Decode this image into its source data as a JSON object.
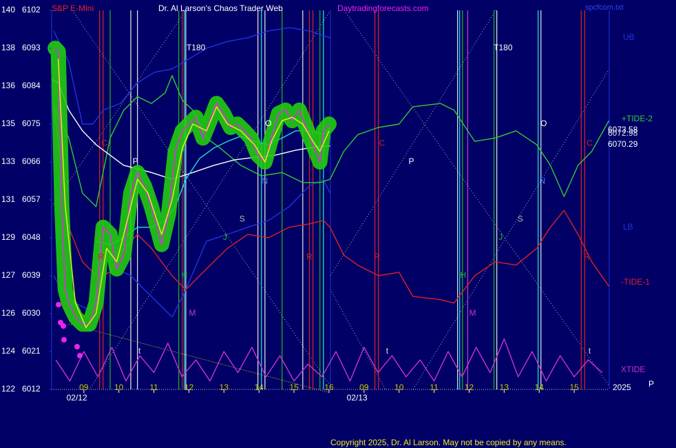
{
  "chart_data": {
    "type": "line",
    "title": "Dr. Al Larson's Chaos Trader Web",
    "instrument": "S&P E-Mini",
    "site": "Daytradingforecasts.com",
    "file": "spcfcom.txt",
    "copyright": "Copyright 2025, Dr. Al Larson. May not be copied by any means.",
    "year": "2025",
    "corner_label": "P",
    "dates": [
      {
        "label": "02/12",
        "x": 0.8
      },
      {
        "label": "02/13",
        "x": 8.8
      }
    ],
    "xlim": [
      0.08,
      16
    ],
    "xticks": [
      {
        "value": 1,
        "label": "09"
      },
      {
        "value": 2,
        "label": "10"
      },
      {
        "value": 3,
        "label": "11"
      },
      {
        "value": 4,
        "label": "12"
      },
      {
        "value": 5,
        "label": "13"
      },
      {
        "value": 6,
        "label": "14"
      },
      {
        "value": 7,
        "label": "15"
      },
      {
        "value": 8,
        "label": "16"
      },
      {
        "value": 9,
        "label": "09"
      },
      {
        "value": 10,
        "label": "10"
      },
      {
        "value": 11,
        "label": "11"
      },
      {
        "value": 12,
        "label": "12"
      },
      {
        "value": 13,
        "label": "13"
      },
      {
        "value": 14,
        "label": "14"
      },
      {
        "value": 15,
        "label": "15"
      }
    ],
    "ylim": [
      6012,
      6102
    ],
    "yticks": [
      6012,
      6021,
      6030,
      6039,
      6048,
      6057,
      6066,
      6075,
      6084,
      6093,
      6102
    ],
    "y2lim": [
      122,
      140
    ],
    "y2ticks": [
      {
        "value": 122,
        "label": "122"
      },
      {
        "value": 123.8,
        "label": "124"
      },
      {
        "value": 125.6,
        "label": "126"
      },
      {
        "value": 127.4,
        "label": "127"
      },
      {
        "value": 129.2,
        "label": "129"
      },
      {
        "value": 131,
        "label": "131"
      },
      {
        "value": 132.8,
        "label": "133"
      },
      {
        "value": 134.6,
        "label": "135"
      },
      {
        "value": 136.4,
        "label": "136"
      },
      {
        "value": 138.2,
        "label": "138"
      },
      {
        "value": 140,
        "label": "140"
      }
    ],
    "last_values": [
      6073.58,
      6072.98,
      6070.29
    ],
    "series": [
      {
        "name": "UB",
        "color": "#2233dd",
        "x": [
          0.14,
          0.57,
          0.96,
          1.26,
          1.55,
          2.04,
          2.53,
          3.02,
          3.52,
          4.01,
          4.5,
          5.1,
          5.68,
          6.27,
          6.86,
          7.44,
          8.03
        ],
        "values": [
          6097.1,
          6089.7,
          6075.0,
          6075.0,
          6078.3,
          6079.9,
          6084.8,
          6087.3,
          6088.1,
          6090.5,
          6093.0,
          6094.6,
          6095.5,
          6097.1,
          6097.9,
          6097.1,
          6095.5
        ]
      },
      {
        "name": "LB",
        "color": "#2233dd",
        "x": [
          0.14,
          0.47,
          0.76,
          1.16,
          1.55,
          1.94,
          2.34,
          2.73,
          3.12,
          3.52,
          3.91,
          4.5,
          5.1,
          5.68,
          6.27,
          6.86,
          7.44,
          7.84,
          8.03
        ],
        "values": [
          6039.0,
          6034.1,
          6032.5,
          6030.8,
          6039.0,
          6040.6,
          6039.0,
          6035.7,
          6032.5,
          6029.2,
          6035.7,
          6047.2,
          6048.8,
          6050.5,
          6052.1,
          6055.4,
          6060.3,
          6061.9,
          6058.6
        ]
      },
      {
        "name": "+TIDE-2",
        "color": "#33cc33",
        "x": [
          0.18,
          0.57,
          0.96,
          1.35,
          1.75,
          2.14,
          2.53,
          2.93,
          3.32,
          3.52,
          3.81,
          4.11,
          4.5,
          4.89,
          5.48,
          6.07,
          6.66,
          7.25,
          7.74,
          8.03,
          8.42,
          8.82,
          9.41,
          10.0,
          10.39,
          11.18,
          11.57,
          12.16,
          12.75,
          13.34,
          13.93,
          14.32,
          14.71,
          15.11,
          15.5,
          15.99
        ],
        "values": [
          6078.3,
          6071.7,
          6058.6,
          6055.4,
          6071.7,
          6078.3,
          6081.5,
          6079.9,
          6082.4,
          6086.5,
          6080.7,
          6078.3,
          6071.7,
          6069.3,
          6065.2,
          6062.7,
          6063.5,
          6061.1,
          6061.1,
          6061.9,
          6068.5,
          6072.5,
          6074.2,
          6075.0,
          6079.1,
          6079.9,
          6078.3,
          6070.9,
          6071.7,
          6073.4,
          6070.1,
          6065.2,
          6057.8,
          6065.2,
          6068.5,
          6075.8
        ]
      },
      {
        "name": "-TIDE-1",
        "color": "#dd2222",
        "x": [
          0.14,
          0.37,
          0.57,
          0.96,
          1.35,
          1.75,
          2.14,
          2.53,
          2.93,
          3.52,
          3.91,
          4.5,
          5.1,
          5.68,
          6.27,
          6.86,
          7.44,
          7.84,
          8.03,
          8.42,
          8.82,
          9.41,
          10.0,
          10.39,
          11.18,
          11.57,
          12.16,
          12.75,
          13.34,
          13.93,
          14.32,
          14.71,
          15.11,
          15.5,
          15.99
        ],
        "values": [
          6079.9,
          6063.5,
          6050.5,
          6042.3,
          6039.0,
          6039.8,
          6045.5,
          6048.8,
          6045.5,
          6039.0,
          6035.7,
          6040.6,
          6045.5,
          6048.8,
          6048.0,
          6050.5,
          6051.3,
          6052.1,
          6050.5,
          6043.9,
          6041.5,
          6039.0,
          6039.8,
          6034.1,
          6033.3,
          6032.5,
          6039.0,
          6042.3,
          6041.5,
          6045.5,
          6050.5,
          6054.5,
          6048.8,
          6042.3,
          6036.5
        ]
      },
      {
        "name": "XTIDE",
        "color": "#cc33cc",
        "x": [
          0.2,
          0.6,
          1.0,
          1.4,
          1.8,
          2.2,
          2.6,
          3.0,
          3.4,
          3.8,
          4.2,
          4.6,
          5.0,
          5.4,
          5.8,
          6.2,
          6.6,
          7.0,
          7.4,
          7.8,
          8.2,
          8.6,
          9.0,
          9.4,
          9.8,
          10.2,
          10.6,
          11.0,
          11.4,
          11.8,
          12.2,
          12.6,
          13.0,
          13.4,
          13.8,
          14.2,
          14.6,
          15.0,
          15.4,
          15.8
        ],
        "values": [
          6019,
          6014,
          6021,
          6015,
          6022,
          6014,
          6020,
          6016,
          6023,
          6015,
          6019,
          6014,
          6021,
          6016,
          6022,
          6015,
          6020,
          6014,
          6018,
          6015,
          6021,
          6014,
          6022,
          6016,
          6020,
          6015,
          6019,
          6014,
          6021,
          6015,
          6022,
          6016,
          6024,
          6015,
          6021,
          6014,
          6020,
          6015,
          6019,
          6016
        ]
      },
      {
        "color": "#ffffff",
        "x": [
          0.08,
          0.27,
          0.57,
          0.96,
          1.35,
          1.75,
          2.14,
          2.53,
          2.93,
          3.52,
          4.11,
          4.71,
          5.3,
          5.87,
          6.46,
          7.05,
          7.64,
          8.03
        ],
        "values": [
          6085.6,
          6084.8,
          6078.3,
          6073.4,
          6070.1,
          6067.6,
          6065.2,
          6064.4,
          6063.5,
          6061.9,
          6063.5,
          6065.2,
          6066.5,
          6067.1,
          6067.6,
          6068.8,
          6069.6,
          6069.8
        ]
      },
      {
        "color": "#22dddd",
        "x": [
          1.35,
          1.75,
          2.14,
          2.53,
          2.93,
          3.32,
          3.61,
          3.91,
          4.3,
          4.71,
          5.1,
          5.48,
          5.87,
          6.27,
          6.66,
          7.05,
          7.44,
          7.84,
          8.03
        ],
        "values": [
          6047.2,
          6046.4,
          6048.0,
          6050.5,
          6050.5,
          6052.1,
          6055.4,
          6061.9,
          6066.8,
          6069.3,
          6070.9,
          6072.1,
          6070.9,
          6070.1,
          6071.7,
          6073.4,
          6073.4,
          6072.5,
          6074.2
        ]
      },
      {
        "color": "#ee22ee",
        "halo": "#22cc11",
        "x": [
          0.18,
          0.27,
          0.37,
          0.47,
          0.57,
          0.76,
          0.96,
          1.16,
          1.35,
          1.55,
          1.75,
          1.94,
          2.14,
          2.34,
          2.53,
          2.73,
          2.93,
          3.22,
          3.42,
          3.61,
          3.81,
          4.01,
          4.2,
          4.4,
          4.6,
          4.79,
          4.99,
          5.19,
          5.38,
          5.58,
          5.77,
          5.97,
          6.17,
          6.36,
          6.56,
          6.76,
          6.95,
          7.15,
          7.35,
          7.54,
          7.74,
          7.84,
          8.0
        ],
        "values": [
          6093.0,
          6092.2,
          6055.4,
          6035.7,
          6032.5,
          6029.2,
          6027.5,
          6027.5,
          6032.5,
          6050.5,
          6048.8,
          6040.6,
          6043.9,
          6058.6,
          6063.5,
          6060.3,
          6055.4,
          6046.4,
          6053.7,
          6068.5,
          6073.4,
          6075.0,
          6076.6,
          6071.7,
          6075.8,
          6079.9,
          6077.5,
          6074.2,
          6075.0,
          6073.4,
          6071.7,
          6067.6,
          6066.0,
          6071.7,
          6077.5,
          6078.3,
          6075.8,
          6078.3,
          6074.2,
          6070.1,
          6066.0,
          6073.4,
          6075.0
        ]
      },
      {
        "color": "#eeee22",
        "x": [
          0.27,
          0.47,
          0.76,
          1.06,
          1.35,
          1.65,
          1.94,
          2.24,
          2.53,
          2.83,
          3.22,
          3.52,
          3.81,
          4.11,
          4.5,
          4.79,
          5.1,
          5.48,
          5.87,
          6.17,
          6.36,
          6.66,
          6.95,
          7.25,
          7.54,
          7.74,
          8.0
        ],
        "values": [
          6090.5,
          6055.4,
          6032.5,
          6026.7,
          6030.0,
          6045.5,
          6042.3,
          6052.1,
          6061.9,
          6058.6,
          6048.8,
          6057.0,
          6069.3,
          6075.0,
          6073.4,
          6079.1,
          6075.0,
          6073.4,
          6070.1,
          6066.0,
          6070.9,
          6075.8,
          6076.6,
          6075.0,
          6070.9,
          6068.5,
          6073.4
        ]
      }
    ],
    "vlines": [
      {
        "x": 1.45,
        "color": "#cc2222"
      },
      {
        "x": 1.55,
        "color": "#cc2222"
      },
      {
        "x": 1.75,
        "color": "#22aa22"
      },
      {
        "x": 2.34,
        "color": "#dddddd"
      },
      {
        "x": 2.53,
        "color": "#dddddd"
      },
      {
        "x": 3.71,
        "color": "#22aa22"
      },
      {
        "x": 3.81,
        "color": "#cc2222"
      },
      {
        "x": 3.87,
        "color": "#22dddd"
      },
      {
        "x": 3.91,
        "color": "#dddddd"
      },
      {
        "x": 5.97,
        "color": "#dddddd"
      },
      {
        "x": 6.07,
        "color": "#22dddd"
      },
      {
        "x": 6.17,
        "color": "#dddddd"
      },
      {
        "x": 6.66,
        "color": "#22aa22"
      },
      {
        "x": 7.25,
        "color": "#dddddd"
      },
      {
        "x": 7.44,
        "color": "#cc2222"
      },
      {
        "x": 7.54,
        "color": "#cc2222"
      },
      {
        "x": 7.74,
        "color": "#22aa22"
      },
      {
        "x": 7.84,
        "color": "#22dddd"
      },
      {
        "x": 9.31,
        "color": "#cc2222"
      },
      {
        "x": 9.41,
        "color": "#cc2222"
      },
      {
        "x": 11.67,
        "color": "#dddddd"
      },
      {
        "x": 11.73,
        "color": "#22dddd"
      },
      {
        "x": 11.81,
        "color": "#22aa22"
      },
      {
        "x": 11.96,
        "color": "#cc33cc"
      },
      {
        "x": 12.71,
        "color": "#22aa22"
      },
      {
        "x": 12.79,
        "color": "#dddddd"
      },
      {
        "x": 13.97,
        "color": "#22dddd"
      },
      {
        "x": 14.05,
        "color": "#dddddd"
      },
      {
        "x": 15.2,
        "color": "#cc2222"
      },
      {
        "x": 15.3,
        "color": "#cc2222"
      }
    ],
    "markers": [
      {
        "label": "C",
        "x": 1.59,
        "y": 6070.4,
        "color": "#cc2222"
      },
      {
        "label": "C",
        "x": 9.51,
        "y": 6070.4,
        "color": "#cc2222"
      },
      {
        "label": "C",
        "x": 15.44,
        "y": 6070.4,
        "color": "#cc2222"
      },
      {
        "label": "P",
        "x": 2.47,
        "y": 6066.0,
        "color": "#ffffff"
      },
      {
        "label": "P",
        "x": 10.35,
        "y": 6066.0,
        "color": "#ffffff"
      },
      {
        "label": "R",
        "x": 1.49,
        "y": 6043.4,
        "color": "#cc2222"
      },
      {
        "label": "R",
        "x": 7.44,
        "y": 6043.4,
        "color": "#cc2222"
      },
      {
        "label": "R",
        "x": 9.37,
        "y": 6043.4,
        "color": "#cc2222"
      },
      {
        "label": "R",
        "x": 15.36,
        "y": 6043.4,
        "color": "#cc2222"
      },
      {
        "label": "H",
        "x": 3.87,
        "y": 6039.0,
        "color": "#22bb22"
      },
      {
        "label": "H",
        "x": 11.83,
        "y": 6039.0,
        "color": "#22bb22"
      },
      {
        "label": "M",
        "x": 4.1,
        "y": 6030.0,
        "color": "#cc33cc"
      },
      {
        "label": "M",
        "x": 12.1,
        "y": 6030.0,
        "color": "#cc33cc"
      },
      {
        "label": "J",
        "x": 5.03,
        "y": 6048.0,
        "color": "#22bb22"
      },
      {
        "label": "J",
        "x": 12.9,
        "y": 6048.0,
        "color": "#22bb22"
      },
      {
        "label": "S",
        "x": 5.52,
        "y": 6052.4,
        "color": "#bbbbbb"
      },
      {
        "label": "S",
        "x": 13.46,
        "y": 6052.4,
        "color": "#bbbbbb"
      },
      {
        "label": "N",
        "x": 6.17,
        "y": 6061.4,
        "color": "#4488ff"
      },
      {
        "label": "N",
        "x": 14.09,
        "y": 6061.4,
        "color": "#4488ff"
      },
      {
        "label": "O",
        "x": 6.27,
        "y": 6075.0,
        "color": "#ffffff"
      },
      {
        "label": "O",
        "x": 14.13,
        "y": 6075.0,
        "color": "#ffffff"
      },
      {
        "label": "T180",
        "x": 4.2,
        "y": 6093.0,
        "color": "#ffffff"
      },
      {
        "label": "T180",
        "x": 12.97,
        "y": 6093.0,
        "color": "#ffffff"
      },
      {
        "label": "t",
        "x": 2.59,
        "y": 6021.0,
        "color": "#dddddd"
      },
      {
        "label": "t",
        "x": 9.66,
        "y": 6021.0,
        "color": "#dddddd"
      },
      {
        "label": "t",
        "x": 15.44,
        "y": 6021.0,
        "color": "#dddddd"
      }
    ]
  }
}
